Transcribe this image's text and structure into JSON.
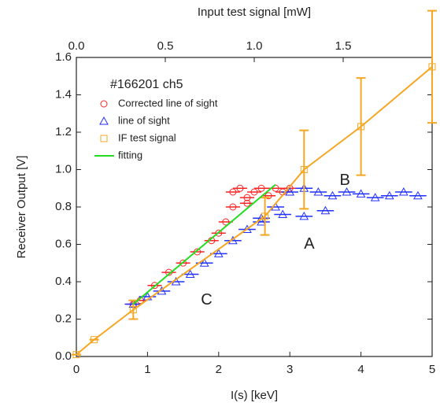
{
  "chart_data": {
    "type": "scatter",
    "xlabel": "I(s) [keV]",
    "ylabel": "Receiver Output [V]",
    "x2label": "Input test signal [mW]",
    "xlim": [
      0,
      5
    ],
    "xticks": [
      0,
      1,
      2,
      3,
      4,
      5
    ],
    "x2lim": [
      0,
      2.0
    ],
    "x2ticks": [
      {
        "value": 0,
        "label": "0.0"
      },
      0.5,
      {
        "value": 1,
        "label": "1.0"
      },
      1.5
    ],
    "ylim": [
      0,
      1.6
    ],
    "yticks": [
      {
        "value": 0,
        "label": "0.0"
      },
      0.2,
      0.4,
      0.6,
      0.8,
      {
        "value": 1,
        "label": "1.0"
      },
      1.2,
      1.4,
      1.6
    ],
    "annotations": [
      {
        "text": "#166201 ch5"
      },
      {
        "text": "A",
        "x": 3.2,
        "y": 0.6
      },
      {
        "text": "B",
        "x": 3.7,
        "y": 0.94
      },
      {
        "text": "C",
        "x": 1.75,
        "y": 0.3
      }
    ],
    "series": [
      {
        "name": "Corrected line of sight",
        "color": "#ff2020",
        "marker": "circle",
        "x": [
          0.8,
          0.9,
          1.1,
          1.3,
          1.5,
          1.7,
          1.9,
          2.0,
          2.1,
          2.2,
          2.3,
          2.4,
          2.5,
          2.6,
          2.7,
          2.8,
          2.9,
          3.0,
          2.2,
          2.4
        ],
        "values": [
          0.28,
          0.3,
          0.38,
          0.45,
          0.5,
          0.56,
          0.62,
          0.66,
          0.72,
          0.88,
          0.9,
          0.85,
          0.88,
          0.9,
          0.86,
          0.9,
          0.88,
          0.9,
          0.8,
          0.82
        ],
        "xerr": [
          0.1,
          0.1,
          0.1,
          0.1,
          0.1,
          0.1,
          0.1,
          0.1,
          0.1,
          0.1,
          0.1,
          0.1,
          0.1,
          0.1,
          0.1,
          0.1,
          0.1,
          0.1,
          0.1,
          0.1
        ]
      },
      {
        "name": "line of sight",
        "color": "#2030ff",
        "marker": "triangle",
        "x": [
          0.8,
          1.0,
          1.2,
          1.4,
          1.6,
          1.8,
          2.0,
          2.2,
          2.4,
          2.6,
          2.8,
          3.0,
          3.2,
          3.4,
          3.6,
          3.8,
          4.0,
          4.2,
          4.4,
          4.6,
          4.8,
          2.6,
          2.9,
          3.2,
          3.5
        ],
        "values": [
          0.28,
          0.32,
          0.35,
          0.4,
          0.44,
          0.5,
          0.55,
          0.62,
          0.68,
          0.72,
          0.8,
          0.88,
          0.9,
          0.88,
          0.86,
          0.88,
          0.87,
          0.85,
          0.86,
          0.88,
          0.86,
          0.74,
          0.76,
          0.75,
          0.78
        ],
        "xerr": [
          0.12,
          0.12,
          0.12,
          0.12,
          0.12,
          0.12,
          0.12,
          0.12,
          0.12,
          0.12,
          0.12,
          0.12,
          0.12,
          0.12,
          0.12,
          0.12,
          0.12,
          0.12,
          0.12,
          0.12,
          0.12,
          0.12,
          0.12,
          0.12,
          0.12
        ]
      },
      {
        "name": "IF  test signal",
        "color": "#f5a623",
        "marker": "square",
        "line": true,
        "x": [
          0,
          0.25,
          0.8,
          2.65,
          3.2,
          4.0,
          5.0
        ],
        "values": [
          0.01,
          0.09,
          0.25,
          0.75,
          1.0,
          1.23,
          1.55
        ],
        "yerr": [
          0,
          0,
          0.05,
          0.1,
          0.21,
          0.26,
          0.3
        ]
      },
      {
        "name": "fitting",
        "color": "#22dd22",
        "marker": "none",
        "line": true,
        "x": [
          0.8,
          2.8
        ],
        "values": [
          0.28,
          0.92
        ]
      }
    ]
  }
}
